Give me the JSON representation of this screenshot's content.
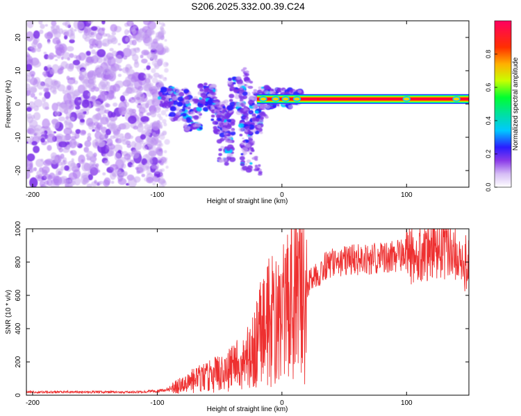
{
  "title": "S206.2025.332.00.39.C24",
  "chart_data": [
    {
      "type": "heatmap",
      "name": "spectrogram",
      "xlabel": "Height of straight line (km)",
      "ylabel": "Frequency (Hz)",
      "xlim": [
        -205,
        150
      ],
      "ylim": [
        -25,
        25
      ],
      "xticks": [
        -200,
        -100,
        0,
        100
      ],
      "yticks": [
        -20,
        -10,
        0,
        10,
        20
      ],
      "colorbar": {
        "label": "Normalized spectral amplitude",
        "range": [
          0,
          1
        ],
        "ticks": [
          0.0,
          0.2,
          0.4,
          0.6,
          0.8
        ],
        "colors": [
          "#ffffff",
          "#c8a8f0",
          "#7a2ee8",
          "#2a1cff",
          "#00c8ff",
          "#00ff40",
          "#c8ff00",
          "#ff8000",
          "#ff1a00",
          "#ff0050"
        ]
      },
      "regions": [
        {
          "description": "scattered low-amplitude noise",
          "x_range": [
            -205,
            -95
          ],
          "f_range": [
            -25,
            25
          ],
          "amplitude": 0.1
        },
        {
          "description": "transition clusters",
          "x_range": [
            -100,
            15
          ],
          "f_range": [
            -22,
            10
          ],
          "amplitude": 0.25
        },
        {
          "description": "strong carrier line",
          "x_range": [
            -20,
            150
          ],
          "frequency": 1.5,
          "amplitude": 1.0
        }
      ]
    },
    {
      "type": "line",
      "name": "snr",
      "xlabel": "Height of straight line (km)",
      "ylabel": "SNR (10 * v/v)",
      "xlim": [
        -205,
        150
      ],
      "ylim": [
        0,
        1000
      ],
      "xticks": [
        -200,
        -100,
        0,
        100
      ],
      "yticks": [
        0,
        200,
        400,
        600,
        800,
        1000
      ],
      "color": "#ee3030",
      "series": [
        {
          "name": "SNR",
          "x": [
            -205,
            -190,
            -175,
            -160,
            -145,
            -130,
            -115,
            -100,
            -90,
            -80,
            -70,
            -60,
            -50,
            -40,
            -30,
            -25,
            -20,
            -15,
            -10,
            -5,
            0,
            5,
            10,
            15,
            20,
            25,
            30,
            35,
            40,
            50,
            60,
            70,
            80,
            90,
            100,
            110,
            120,
            130,
            140,
            150
          ],
          "y": [
            20,
            18,
            20,
            18,
            20,
            18,
            20,
            25,
            35,
            60,
            90,
            110,
            130,
            160,
            200,
            250,
            330,
            400,
            450,
            480,
            500,
            560,
            590,
            620,
            660,
            710,
            740,
            770,
            790,
            810,
            820,
            815,
            830,
            830,
            840,
            860,
            880,
            890,
            840,
            780
          ]
        }
      ]
    }
  ]
}
